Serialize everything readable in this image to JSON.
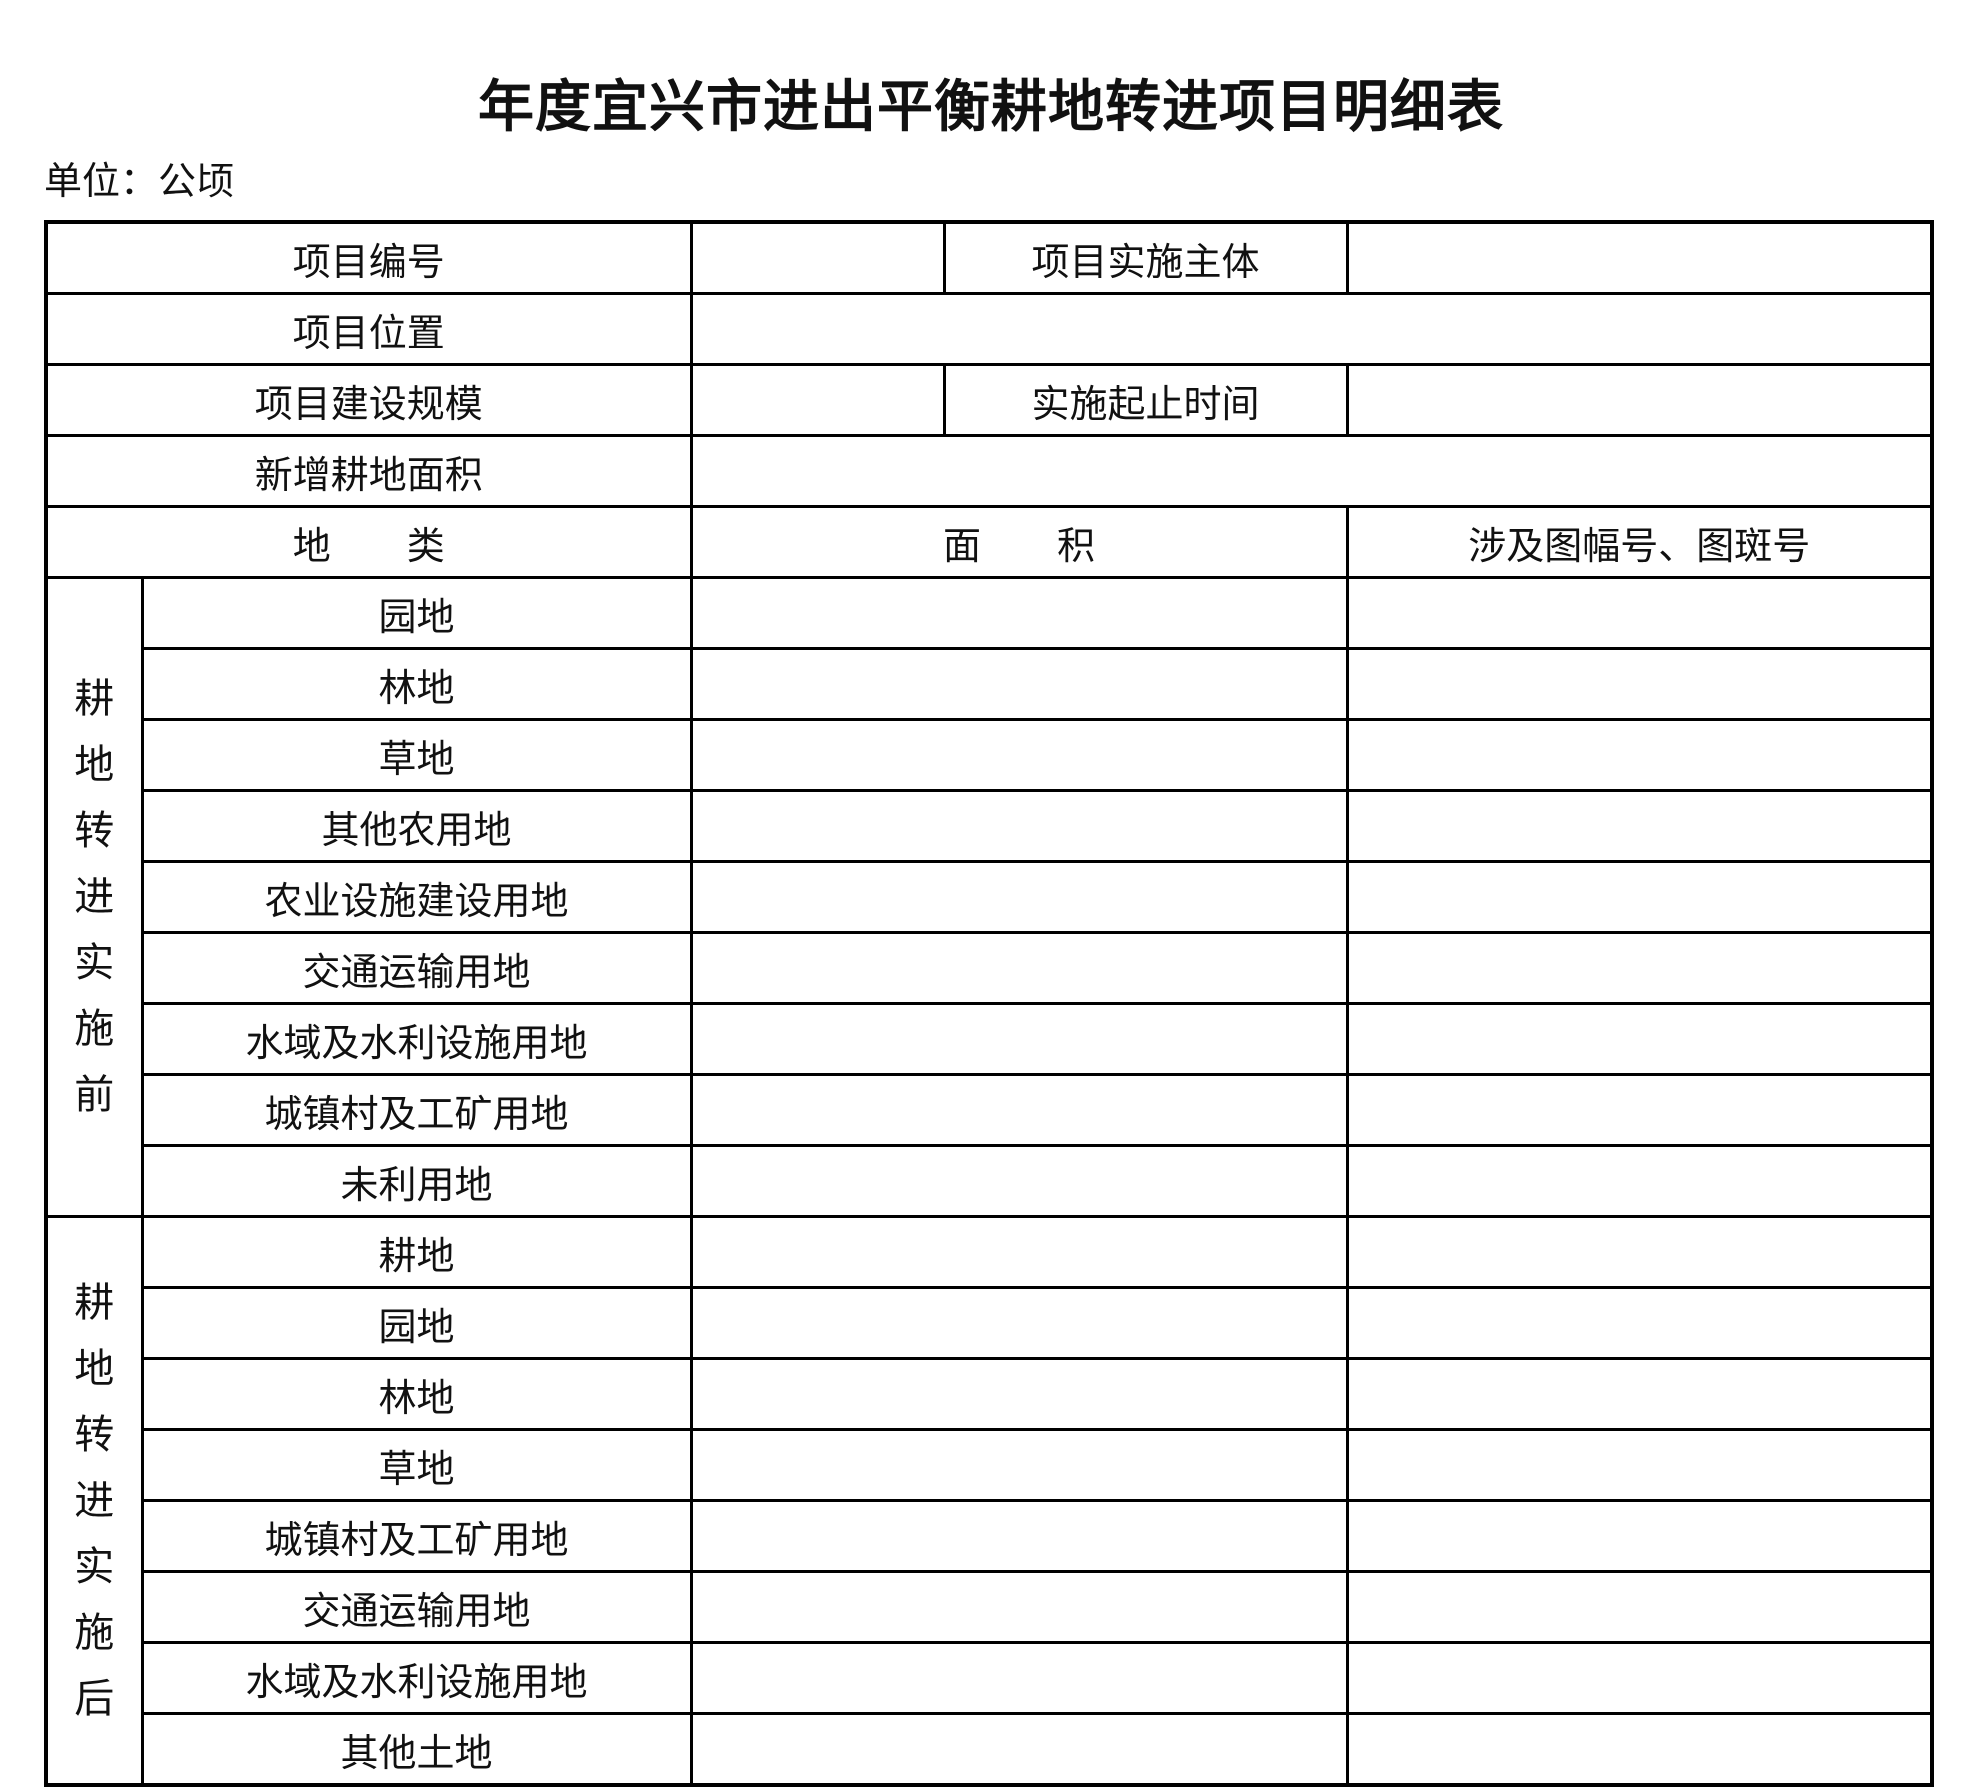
{
  "title": "年度宜兴市进出平衡耕地转进项目明细表",
  "unit_label": "单位：公顷",
  "header": {
    "project_number": "项目编号",
    "project_entity": "项目实施主体",
    "project_location": "项目位置",
    "project_scale": "项目建设规模",
    "start_end_time": "实施起止时间",
    "new_farmland_area": "新增耕地面积"
  },
  "columns": {
    "land_type": "地　　类",
    "area": "面　　积",
    "map_ref": "涉及图幅号、图斑号"
  },
  "before": {
    "label": [
      "耕",
      "地",
      "转",
      "进",
      "实",
      "施",
      "前"
    ],
    "rows": [
      "园地",
      "林地",
      "草地",
      "其他农用地",
      "农业设施建设用地",
      "交通运输用地",
      "水域及水利设施用地",
      "城镇村及工矿用地",
      "未利用地"
    ]
  },
  "after": {
    "label": [
      "耕",
      "地",
      "转",
      "进",
      "实",
      "施",
      "后"
    ],
    "rows": [
      "耕地",
      "园地",
      "林地",
      "草地",
      "城镇村及工矿用地",
      "交通运输用地",
      "水域及水利设施用地",
      "其他土地"
    ]
  }
}
